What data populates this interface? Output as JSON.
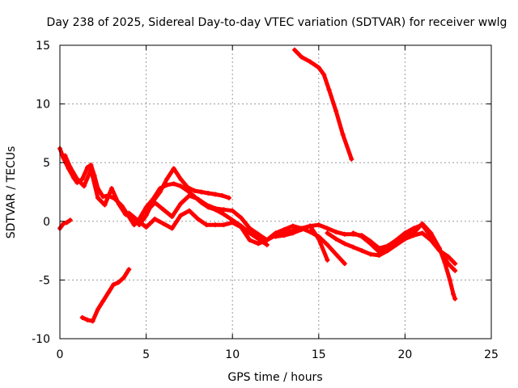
{
  "chart_data": {
    "type": "scatter",
    "title": "Day 238 of 2025, Sidereal Day-to-day VTEC variation (SDTVAR) for receiver wwlg",
    "xlabel": "GPS time / hours",
    "ylabel": "SDTVAR / TECUs",
    "xlim": [
      0,
      25
    ],
    "ylim": [
      -10,
      15
    ],
    "xticks": [
      0,
      5,
      10,
      15,
      20,
      25
    ],
    "yticks": [
      -10,
      -5,
      0,
      5,
      10,
      15
    ],
    "grid": true,
    "color": "#ff0000",
    "series": [
      {
        "name": "track-1",
        "x": [
          13.6,
          14.0,
          14.5,
          15.0,
          15.3,
          15.6,
          16.0,
          16.4,
          16.9
        ],
        "y": [
          14.6,
          14.0,
          13.6,
          13.1,
          12.5,
          11.2,
          9.4,
          7.4,
          5.3
        ]
      },
      {
        "name": "track-2",
        "x": [
          0.0,
          0.2,
          0.5,
          0.8,
          1.0,
          1.3,
          1.6,
          1.8,
          2.0,
          2.2,
          2.5,
          2.8,
          3.2,
          3.6,
          4.0,
          4.3,
          4.6,
          5.0,
          5.4,
          5.8,
          6.2,
          6.6,
          7.0,
          7.4,
          7.8,
          8.2,
          8.6,
          9.0,
          9.5,
          10.0,
          10.5,
          11.0,
          11.5,
          12.0
        ],
        "y": [
          6.2,
          5.4,
          4.5,
          3.7,
          3.3,
          3.6,
          4.6,
          4.8,
          3.9,
          2.8,
          2.1,
          2.2,
          1.9,
          1.3,
          0.4,
          -0.3,
          0.2,
          1.2,
          1.9,
          2.8,
          3.1,
          3.2,
          3.0,
          2.6,
          2.1,
          1.6,
          1.2,
          1.0,
          0.6,
          0.1,
          -0.4,
          -1.0,
          -1.5,
          -2.0
        ]
      },
      {
        "name": "track-3",
        "x": [
          0.3,
          0.6,
          1.0,
          1.4,
          1.8,
          2.2,
          2.6,
          3.0,
          3.4,
          3.8,
          4.2,
          4.6,
          5.0,
          5.4,
          5.8,
          6.2,
          6.6,
          7.0,
          7.4,
          7.8,
          8.2,
          8.6,
          9.0,
          9.4,
          9.8
        ],
        "y": [
          5.6,
          4.6,
          3.6,
          3.0,
          4.4,
          2.0,
          1.4,
          2.8,
          1.5,
          0.6,
          0.3,
          -0.3,
          0.5,
          1.7,
          2.5,
          3.6,
          4.5,
          3.6,
          2.9,
          2.6,
          2.5,
          2.4,
          2.3,
          2.2,
          2.0
        ]
      },
      {
        "name": "track-4",
        "x": [
          5.0,
          5.5,
          6.0,
          6.5,
          7.0,
          7.5,
          8.0,
          8.5,
          9.0,
          9.5,
          10.0,
          10.5,
          11.0,
          11.5,
          12.0,
          12.5,
          13.0,
          13.5,
          14.0,
          14.5,
          15.0,
          15.5,
          16.0,
          16.5
        ],
        "y": [
          0.8,
          1.6,
          1.0,
          0.4,
          1.5,
          2.2,
          1.9,
          1.4,
          1.1,
          1.0,
          0.9,
          0.3,
          -0.6,
          -1.1,
          -1.6,
          -1.0,
          -0.7,
          -0.4,
          -0.6,
          -0.9,
          -1.3,
          -2.0,
          -2.8,
          -3.6
        ]
      },
      {
        "name": "track-5",
        "x": [
          4.0,
          4.5,
          5.0,
          5.5,
          6.0,
          6.5,
          7.0,
          7.5,
          8.0,
          8.5,
          9.0,
          9.5,
          10.0,
          10.5,
          11.0,
          11.5,
          12.0,
          12.5,
          13.0,
          13.5,
          14.0,
          14.5,
          15.0,
          15.5
        ],
        "y": [
          0.7,
          0.1,
          -0.5,
          0.2,
          -0.2,
          -0.6,
          0.5,
          0.9,
          0.2,
          -0.3,
          -0.3,
          -0.3,
          -0.1,
          -0.5,
          -1.6,
          -1.9,
          -1.6,
          -1.2,
          -1.0,
          -0.8,
          -0.6,
          -0.4,
          -1.5,
          -3.3
        ]
      },
      {
        "name": "track-6",
        "x": [
          12.5,
          13.0,
          13.5,
          14.0,
          14.5,
          15.0,
          15.5,
          16.0,
          16.5,
          17.0,
          17.5,
          18.0,
          18.5,
          19.0,
          19.5,
          20.0,
          20.5,
          21.0,
          21.5,
          22.0,
          22.5,
          22.9
        ],
        "y": [
          -1.3,
          -1.2,
          -1.0,
          -0.7,
          -0.4,
          -0.3,
          -0.6,
          -0.9,
          -1.1,
          -1.1,
          -1.2,
          -1.7,
          -2.3,
          -2.1,
          -1.6,
          -1.0,
          -0.6,
          -0.3,
          -1.3,
          -2.4,
          -3.6,
          -4.2
        ]
      },
      {
        "name": "track-7",
        "x": [
          17.0,
          17.5,
          18.0,
          18.5,
          19.0,
          19.5,
          20.0,
          20.5,
          21.0,
          21.5,
          22.0,
          22.3,
          22.6,
          22.8,
          22.9
        ],
        "y": [
          -1.0,
          -1.3,
          -1.9,
          -2.6,
          -2.1,
          -1.6,
          -1.2,
          -1.0,
          -0.2,
          -1.0,
          -2.3,
          -3.5,
          -5.0,
          -6.2,
          -6.6
        ]
      },
      {
        "name": "track-8",
        "x": [
          15.5,
          16.0,
          16.5,
          17.0,
          17.5,
          18.0,
          18.5,
          19.0,
          19.5,
          20.0,
          20.5,
          21.0,
          21.5,
          22.0,
          22.5,
          22.9
        ],
        "y": [
          -1.0,
          -1.5,
          -1.9,
          -2.2,
          -2.5,
          -2.8,
          -2.9,
          -2.5,
          -2.0,
          -1.5,
          -1.2,
          -1.0,
          -1.6,
          -2.5,
          -3.0,
          -3.6
        ]
      },
      {
        "name": "track-9",
        "x": [
          0.0,
          0.2,
          0.4,
          0.6
        ],
        "y": [
          -0.6,
          -0.2,
          -0.1,
          0.1
        ]
      },
      {
        "name": "track-10",
        "x": [
          1.3,
          1.6,
          1.9,
          2.2,
          2.5,
          2.8,
          3.1,
          3.4,
          3.7,
          4.0
        ],
        "y": [
          -8.2,
          -8.4,
          -8.5,
          -7.5,
          -6.8,
          -6.1,
          -5.4,
          -5.2,
          -4.8,
          -4.1
        ]
      }
    ]
  }
}
